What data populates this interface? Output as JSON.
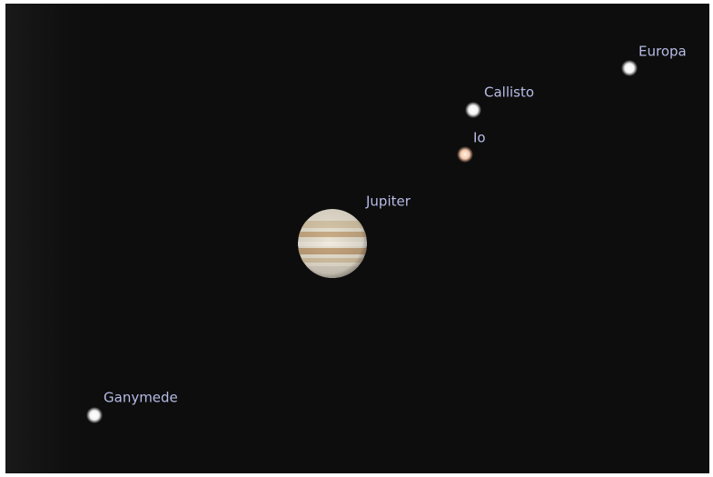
{
  "objects": {
    "europa": "Europa",
    "callisto": "Callisto",
    "io": "Io",
    "jupiter": "Jupiter",
    "ganymede": "Ganymede"
  }
}
